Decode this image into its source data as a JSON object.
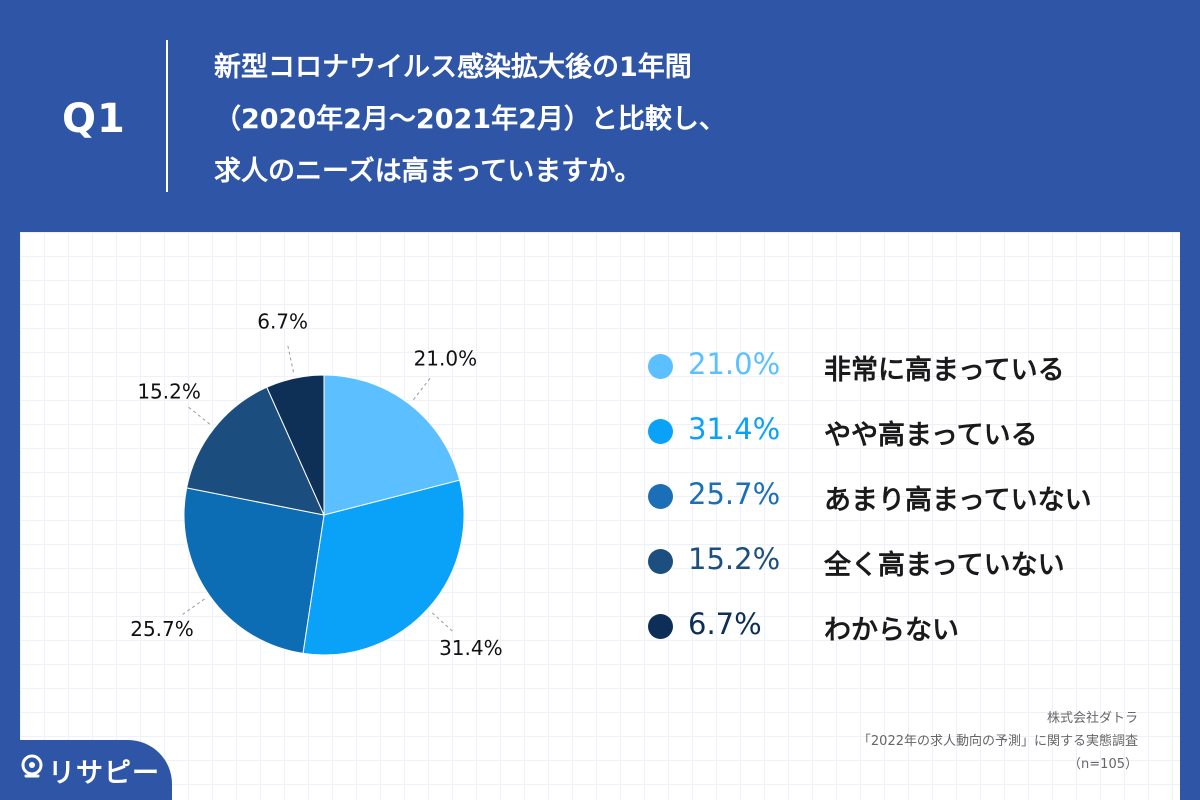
{
  "header": {
    "q_label": "Q1",
    "question_lines": [
      "新型コロナウイルス感染拡大後の1年間",
      "（2020年2月〜2021年2月）と比較し、",
      "求人のニーズは高まっていますか。"
    ]
  },
  "chart_data": {
    "type": "pie",
    "title": "新型コロナウイルス感染拡大後の1年間（2020年2月〜2021年2月）と比較し、求人のニーズは高まっていますか。",
    "categories": [
      "非常に高まっている",
      "やや高まっている",
      "あまり高まっていない",
      "全く高まっていない",
      "わからない"
    ],
    "values": [
      21.0,
      31.4,
      25.7,
      15.2,
      6.7
    ],
    "labels": [
      "21.0%",
      "31.4%",
      "25.7%",
      "15.2%",
      "6.7%"
    ],
    "colors": [
      "#5cbfff",
      "#0aa2f8",
      "#0c6db4",
      "#1b4d7f",
      "#0e2f56"
    ],
    "start": "12 o'clock",
    "direction": "clockwise",
    "legend_position": "right"
  },
  "legend": [
    {
      "pct": "21.0%",
      "label": "非常に高まっている",
      "color": "#5cbfff"
    },
    {
      "pct": "31.4%",
      "label": "やや高まっている",
      "color": "#0aa2f8"
    },
    {
      "pct": "25.7%",
      "label": "あまり高まっていない",
      "color": "#1b6fb7"
    },
    {
      "pct": "15.2%",
      "label": "全く高まっていない",
      "color": "#1c4f80"
    },
    {
      "pct": "6.7%",
      "label": "わからない",
      "color": "#0d2f57"
    }
  ],
  "source": {
    "company": "株式会社ダトラ",
    "survey": "「2022年の求人動向の予測」に関する実態調査",
    "n": "（n=105）"
  },
  "logo": {
    "text": "リサピー"
  }
}
